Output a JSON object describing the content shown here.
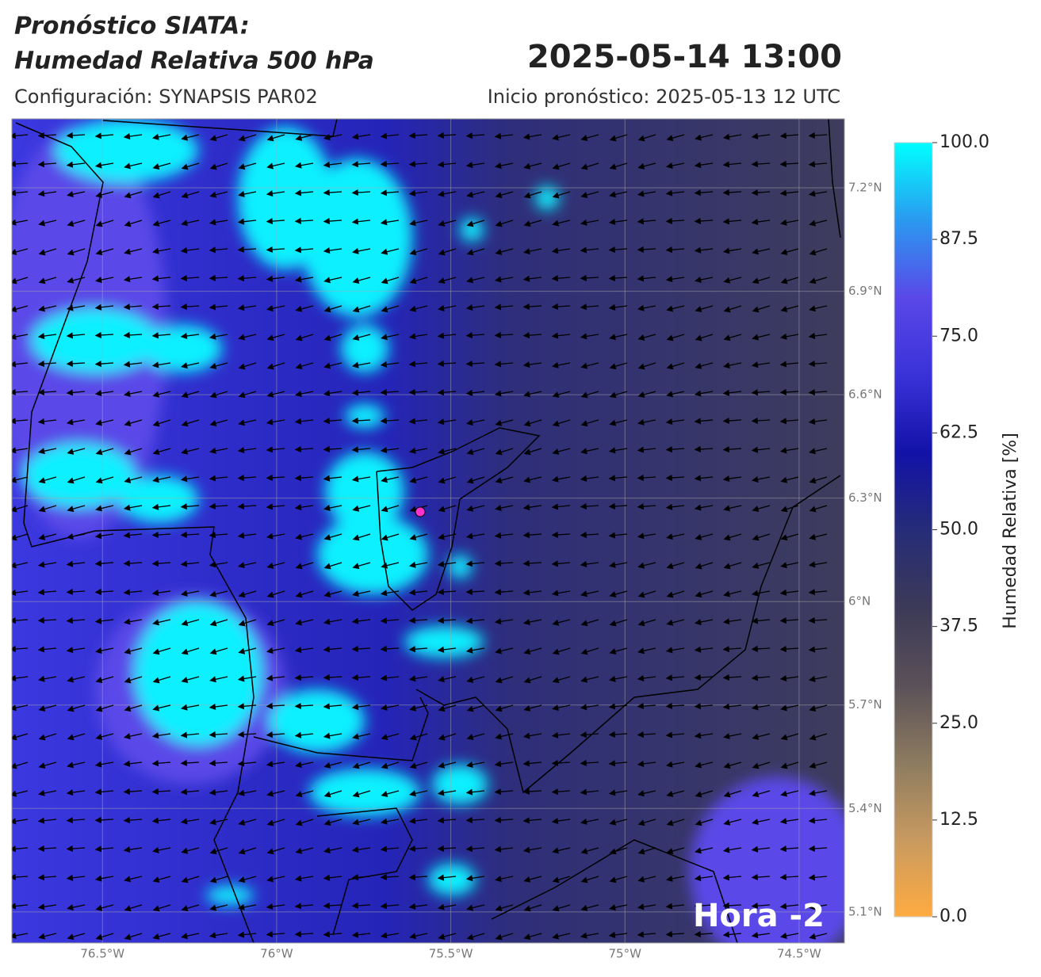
{
  "header": {
    "title_line1": "Pronóstico SIATA:",
    "title_line2": "Humedad Relativa 500 hPa",
    "datetime": "2025-05-14 13:00",
    "config": "Configuración: SYNAPSIS PAR02",
    "start": "Inicio pronóstico: 2025-05-13 12 UTC"
  },
  "chart_data": {
    "type": "map",
    "xlim": [
      -76.76,
      -74.37
    ],
    "ylim": [
      5.01,
      7.4
    ],
    "xticks": [
      {
        "value": -76.5,
        "label": "76.5°W"
      },
      {
        "value": -76,
        "label": "76°W"
      },
      {
        "value": -75.5,
        "label": "75.5°W"
      },
      {
        "value": -75,
        "label": "75°W"
      },
      {
        "value": -74.5,
        "label": "74.5°W"
      }
    ],
    "yticks": [
      {
        "value": 5.1,
        "label": "5.1°N"
      },
      {
        "value": 5.4,
        "label": "5.4°N"
      },
      {
        "value": 5.7,
        "label": "5.7°N"
      },
      {
        "value": 6,
        "label": "6°N"
      },
      {
        "value": 6.3,
        "label": "6.3°N"
      },
      {
        "value": 6.6,
        "label": "6.6°N"
      },
      {
        "value": 6.9,
        "label": "6.9°N"
      },
      {
        "value": 7.2,
        "label": "7.2°N"
      }
    ],
    "grid": true,
    "colorbar": {
      "label": "Humedad Relativa [%]",
      "lim": [
        0,
        100
      ],
      "ticks": [
        {
          "value": 0,
          "label": "0.0"
        },
        12.5,
        {
          "value": 25,
          "label": "25.0"
        },
        37.5,
        {
          "value": 50,
          "label": "50.0"
        },
        62.5,
        {
          "value": 75,
          "label": "75.0"
        },
        87.5,
        {
          "value": 100,
          "label": "100.0"
        }
      ],
      "colors": [
        "#ffab40",
        "#c89a60",
        "#8c7b60",
        "#5a5058",
        "#3c3a58",
        "#262c78",
        "#1212a8",
        "#3a32d8",
        "#5a48e8",
        "#2a9af0",
        "#00ffff"
      ]
    },
    "annotation": "Hora -2"
  }
}
